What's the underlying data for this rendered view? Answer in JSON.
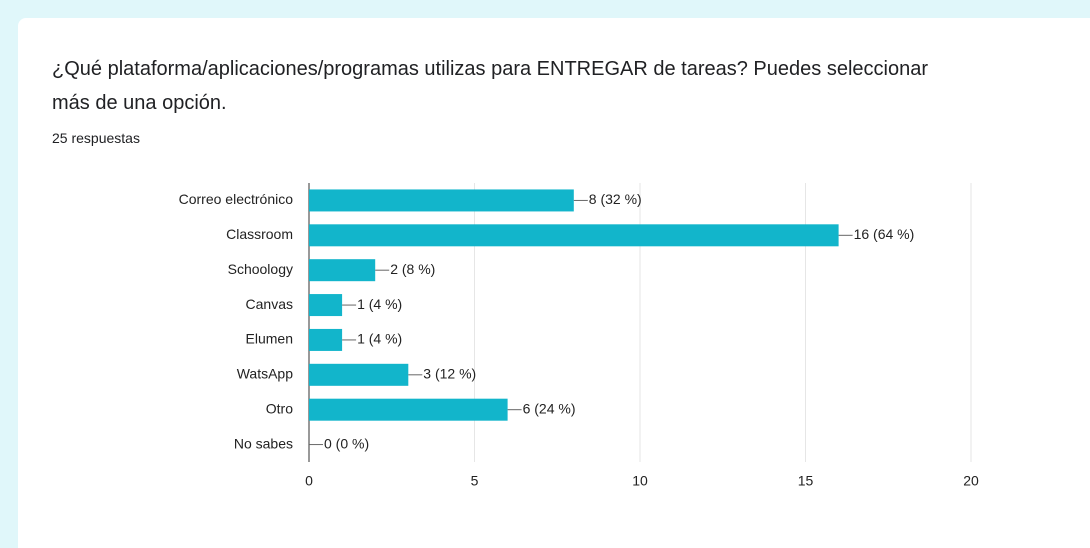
{
  "chart_data": {
    "type": "bar",
    "orientation": "horizontal",
    "title": "¿Qué plataforma/aplicaciones/programas utilizas para ENTREGAR de tareas? Puedes seleccionar más de una opción.",
    "subtitle": "25 respuestas",
    "categories": [
      "Correo electrónico",
      "Classroom",
      "Schoology",
      "Canvas",
      "Elumen",
      "WatsApp",
      "Otro",
      "No sabes"
    ],
    "values": [
      8,
      16,
      2,
      1,
      1,
      3,
      6,
      0
    ],
    "value_labels": [
      "8 (32 %)",
      "16 (64 %)",
      "2 (8 %)",
      "1 (4 %)",
      "1 (4 %)",
      "3 (12 %)",
      "6 (24 %)",
      "0 (0 %)"
    ],
    "color": "#12b5cb",
    "xlim": [
      0,
      20
    ],
    "xticks": [
      0,
      5,
      10,
      15,
      20
    ],
    "grid": true
  }
}
